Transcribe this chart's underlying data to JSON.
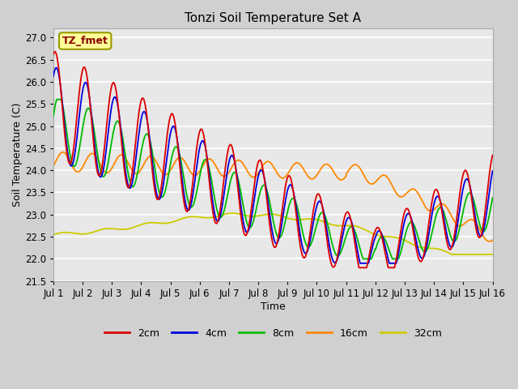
{
  "title": "Tonzi Soil Temperature Set A",
  "xlabel": "Time",
  "ylabel": "Soil Temperature (C)",
  "ylim": [
    21.5,
    27.2
  ],
  "annotation": "TZ_fmet",
  "legend_labels": [
    "2cm",
    "4cm",
    "8cm",
    "16cm",
    "32cm"
  ],
  "legend_colors": [
    "#dd0000",
    "#0000dd",
    "#00bb00",
    "#ff8800",
    "#cccc00"
  ],
  "xtick_positions": [
    0,
    1,
    2,
    3,
    4,
    5,
    6,
    7,
    8,
    9,
    10,
    11,
    12,
    13,
    14,
    15
  ],
  "xtick_labels": [
    "Jul 1",
    "Jul 2",
    "Jul 3",
    "Jul 4",
    "Jul 5",
    "Jul 6",
    "Jul 7",
    "Jul 8",
    "Jul 9",
    "Jul 10",
    "Jul 11",
    "Jul 12",
    "Jul 13",
    "Jul 14",
    "Jul 15",
    "Jul 16"
  ]
}
